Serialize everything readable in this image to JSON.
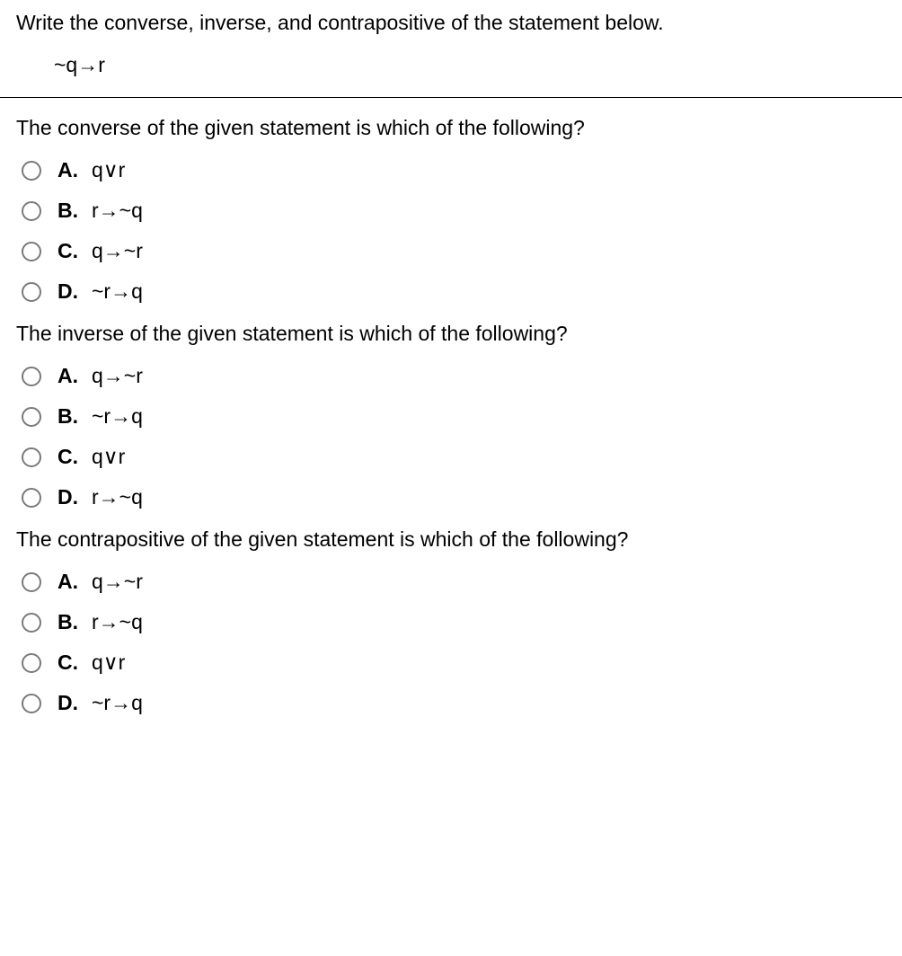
{
  "instruction": "Write the converse, inverse, and contrapositive of the statement below.",
  "statement": "~q→r",
  "questions": [
    {
      "prompt": "The converse of the given statement is which of the following?",
      "options": [
        {
          "letter": "A.",
          "text": "q∨r"
        },
        {
          "letter": "B.",
          "text": "r→~q"
        },
        {
          "letter": "C.",
          "text": "q→~r"
        },
        {
          "letter": "D.",
          "text": "~r→q"
        }
      ]
    },
    {
      "prompt": "The inverse of the given statement is which of the following?",
      "options": [
        {
          "letter": "A.",
          "text": "q→~r"
        },
        {
          "letter": "B.",
          "text": "~r→q"
        },
        {
          "letter": "C.",
          "text": "q∨r"
        },
        {
          "letter": "D.",
          "text": "r→~q"
        }
      ]
    },
    {
      "prompt": "The contrapositive of the given statement is which of the following?",
      "options": [
        {
          "letter": "A.",
          "text": "q→~r"
        },
        {
          "letter": "B.",
          "text": "r→~q"
        },
        {
          "letter": "C.",
          "text": "q∨r"
        },
        {
          "letter": "D.",
          "text": "~r→q"
        }
      ]
    }
  ]
}
